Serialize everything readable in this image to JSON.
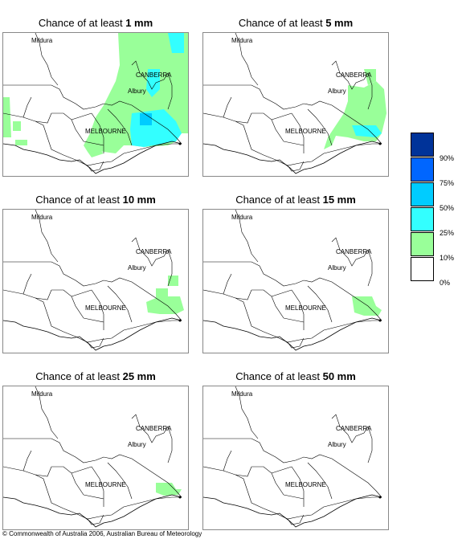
{
  "panels": [
    {
      "title_prefix": "Chance of at least ",
      "title_amount": "1 mm"
    },
    {
      "title_prefix": "Chance of at least ",
      "title_amount": "5 mm"
    },
    {
      "title_prefix": "Chance of at least ",
      "title_amount": "10 mm"
    },
    {
      "title_prefix": "Chance of at least ",
      "title_amount": "15 mm"
    },
    {
      "title_prefix": "Chance of at least ",
      "title_amount": "25 mm"
    },
    {
      "title_prefix": "Chance of at least ",
      "title_amount": "50 mm"
    }
  ],
  "places": {
    "mildura": "Mildura",
    "canberra": "CANBERRA",
    "albury": "Albury",
    "melbourne": "MELBOURNE"
  },
  "legend": {
    "items": [
      {
        "label": "90%",
        "color": "#003399"
      },
      {
        "label": "75%",
        "color": "#0066ff"
      },
      {
        "label": "50%",
        "color": "#00ccff"
      },
      {
        "label": "25%",
        "color": "#33ffff"
      },
      {
        "label": "10%",
        "color": "#99ff99"
      },
      {
        "label": "0%",
        "color": "#ffffff"
      }
    ]
  },
  "copyright": "© Commonwealth of Australia 2006, Australian Bureau of Meteorology"
}
